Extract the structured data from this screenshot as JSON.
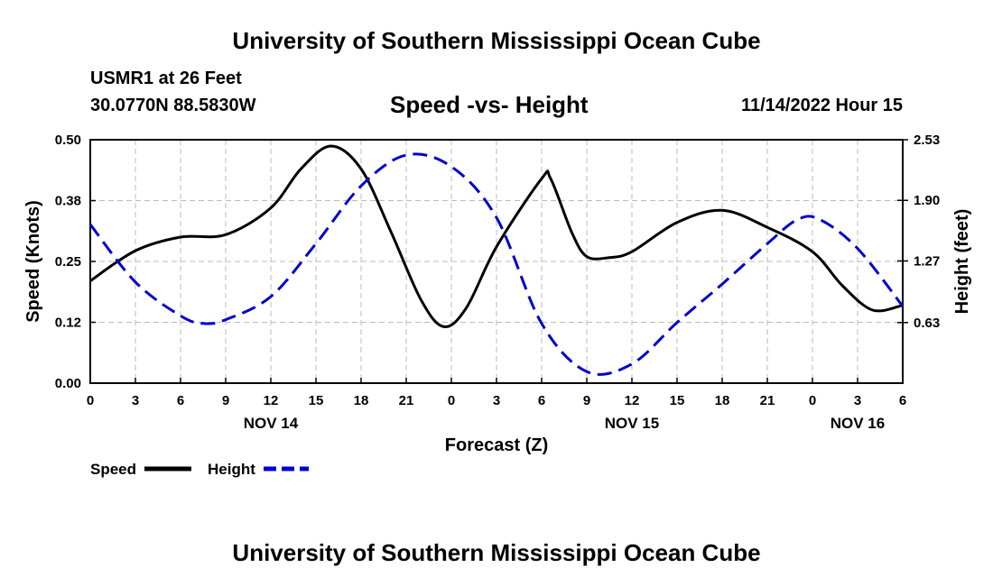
{
  "header": {
    "title": "University of Southern Mississippi Ocean Cube",
    "station": "USMR1 at 26 Feet",
    "coordinates": "30.0770N  88.5830W",
    "subtitle": "Speed -vs- Height",
    "datetime": "11/14/2022 Hour 15"
  },
  "footer": {
    "title": "University of Southern Mississippi Ocean Cube"
  },
  "chart_data": {
    "type": "line",
    "title": "Speed -vs- Height",
    "xlabel": "Forecast (Z)",
    "ylabel_left": "Speed (Knots)",
    "ylabel_right": "Height (feet)",
    "x_range_hours": [
      0,
      54
    ],
    "x_tick_hours": [
      0,
      3,
      6,
      9,
      12,
      15,
      18,
      21,
      24,
      27,
      30,
      33,
      36,
      39,
      42,
      45,
      48,
      51,
      54
    ],
    "x_tick_labels": [
      "0",
      "3",
      "6",
      "9",
      "12",
      "15",
      "18",
      "21",
      "0",
      "3",
      "6",
      "9",
      "12",
      "15",
      "18",
      "21",
      "0",
      "3",
      "6"
    ],
    "date_labels": [
      {
        "hour": 12,
        "label": "NOV 14"
      },
      {
        "hour": 36,
        "label": "NOV 15"
      },
      {
        "hour": 51,
        "label": "NOV 16"
      }
    ],
    "ylim_left": [
      0,
      0.5
    ],
    "y_ticks_left": [
      0.0,
      0.125,
      0.25,
      0.375,
      0.5
    ],
    "y_tick_labels_left": [
      "0.00",
      "0.12",
      "0.25",
      "0.38",
      "0.50"
    ],
    "ylim_right": [
      0,
      2.53
    ],
    "y_ticks_right": [
      0.63,
      1.27,
      1.9,
      2.53
    ],
    "y_tick_labels_right": [
      "0.63",
      "1.27",
      "1.90",
      "2.53"
    ],
    "grid": true,
    "legend_position": "bottom-left",
    "series": [
      {
        "name": "Speed",
        "axis": "left",
        "color": "#000000",
        "dash": "solid",
        "x": [
          0,
          3,
          6,
          9,
          12,
          14,
          16,
          18,
          20,
          22,
          23.5,
          25,
          27,
          30,
          30.6,
          32,
          33,
          34.5,
          36,
          39,
          42,
          45,
          48,
          50,
          52,
          54
        ],
        "y": [
          0.21,
          0.272,
          0.3,
          0.305,
          0.36,
          0.44,
          0.487,
          0.44,
          0.31,
          0.17,
          0.116,
          0.155,
          0.28,
          0.42,
          0.42,
          0.31,
          0.26,
          0.258,
          0.27,
          0.33,
          0.355,
          0.32,
          0.27,
          0.2,
          0.15,
          0.16
        ]
      },
      {
        "name": "Height",
        "axis": "right",
        "color": "#0000cc",
        "dash": "dashed",
        "x": [
          0,
          3,
          6,
          7.5,
          9,
          12,
          15,
          18,
          21,
          24,
          27,
          30,
          33,
          36,
          39,
          42,
          45,
          47,
          48.5,
          51,
          54
        ],
        "y": [
          1.65,
          1.05,
          0.7,
          0.62,
          0.66,
          0.9,
          1.45,
          2.05,
          2.37,
          2.25,
          1.72,
          0.62,
          0.12,
          0.2,
          0.63,
          1.03,
          1.45,
          1.7,
          1.7,
          1.4,
          0.8
        ]
      }
    ]
  }
}
